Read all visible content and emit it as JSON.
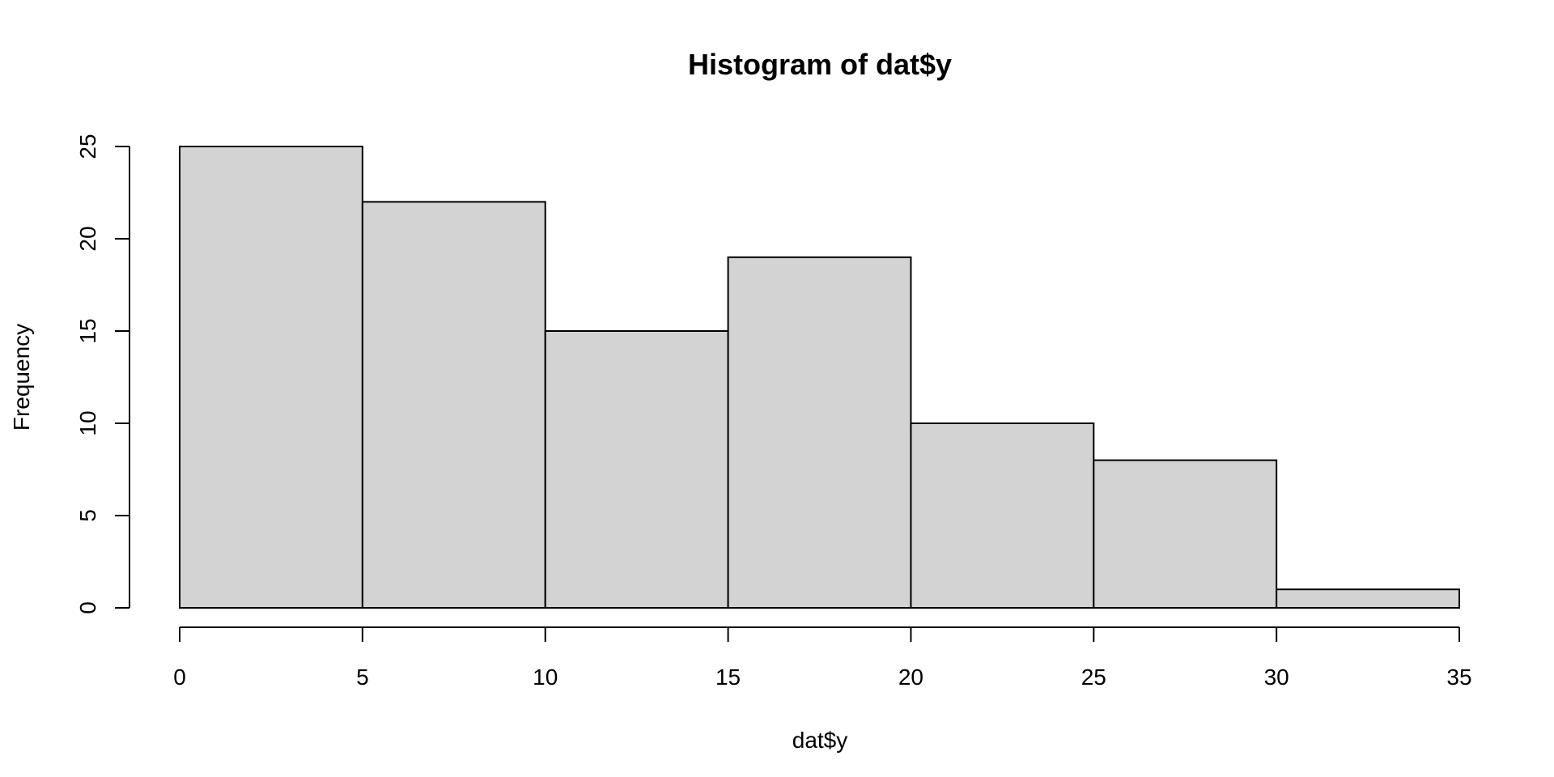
{
  "chart_data": {
    "type": "bar",
    "title": "Histogram of dat$y",
    "xlabel": "dat$y",
    "ylabel": "Frequency",
    "bins": [
      {
        "start": 0,
        "end": 5,
        "count": 25
      },
      {
        "start": 5,
        "end": 10,
        "count": 22
      },
      {
        "start": 10,
        "end": 15,
        "count": 15
      },
      {
        "start": 15,
        "end": 20,
        "count": 19
      },
      {
        "start": 20,
        "end": 25,
        "count": 10
      },
      {
        "start": 25,
        "end": 30,
        "count": 8
      },
      {
        "start": 30,
        "end": 35,
        "count": 1
      }
    ],
    "xlim": [
      0,
      35
    ],
    "ylim": [
      0,
      25
    ],
    "x_ticks": [
      0,
      5,
      10,
      15,
      20,
      25,
      30,
      35
    ],
    "y_ticks": [
      0,
      5,
      10,
      15,
      20,
      25
    ],
    "grid": false,
    "legend": "none",
    "colors": {
      "bar_fill": "#d3d3d3",
      "bar_edge": "#000000"
    }
  }
}
